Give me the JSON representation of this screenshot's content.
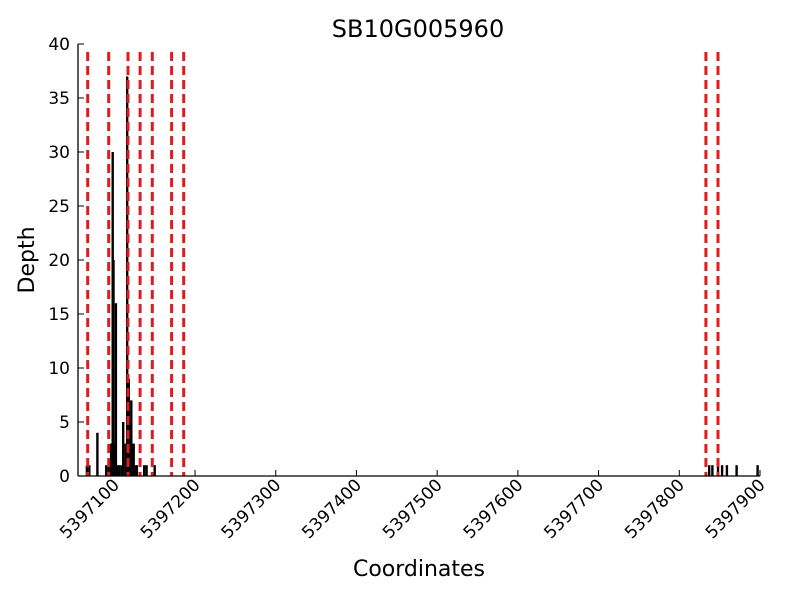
{
  "chart_data": {
    "type": "bar",
    "title": "SB10G005960",
    "xlabel": "Coordinates",
    "ylabel": "Depth",
    "xlim": [
      5397055,
      5397900
    ],
    "ylim": [
      0,
      40
    ],
    "x_ticks": [
      5397100,
      5397200,
      5397300,
      5397400,
      5397500,
      5397600,
      5397700,
      5397800,
      5397900
    ],
    "y_ticks": [
      0,
      5,
      10,
      15,
      20,
      25,
      30,
      35,
      40
    ],
    "grid": false,
    "series": [
      {
        "x": [
          5397066,
          5397069,
          5397079,
          5397090,
          5397093,
          5397096,
          5397098,
          5397099,
          5397100,
          5397102,
          5397104,
          5397106,
          5397109,
          5397111,
          5397114,
          5397116,
          5397118,
          5397119,
          5397120,
          5397121,
          5397122,
          5397124,
          5397126,
          5397128,
          5397137,
          5397140,
          5397150,
          5397837,
          5397841,
          5397848,
          5397853,
          5397859,
          5397871,
          5397897
        ],
        "values": [
          1,
          1,
          4,
          1,
          1,
          3,
          30,
          20,
          3,
          16,
          1,
          1,
          1,
          5,
          3,
          37,
          9,
          5,
          2,
          7,
          2,
          3,
          1,
          1,
          1,
          1,
          1,
          1,
          1,
          1,
          1,
          1,
          1,
          1
        ],
        "color": "#000000"
      }
    ],
    "vlines": {
      "x": [
        5397067,
        5397093,
        5397117,
        5397132,
        5397147,
        5397171,
        5397186,
        5397833,
        5397848
      ],
      "color": "#e31a1c",
      "style": "dashed"
    }
  }
}
